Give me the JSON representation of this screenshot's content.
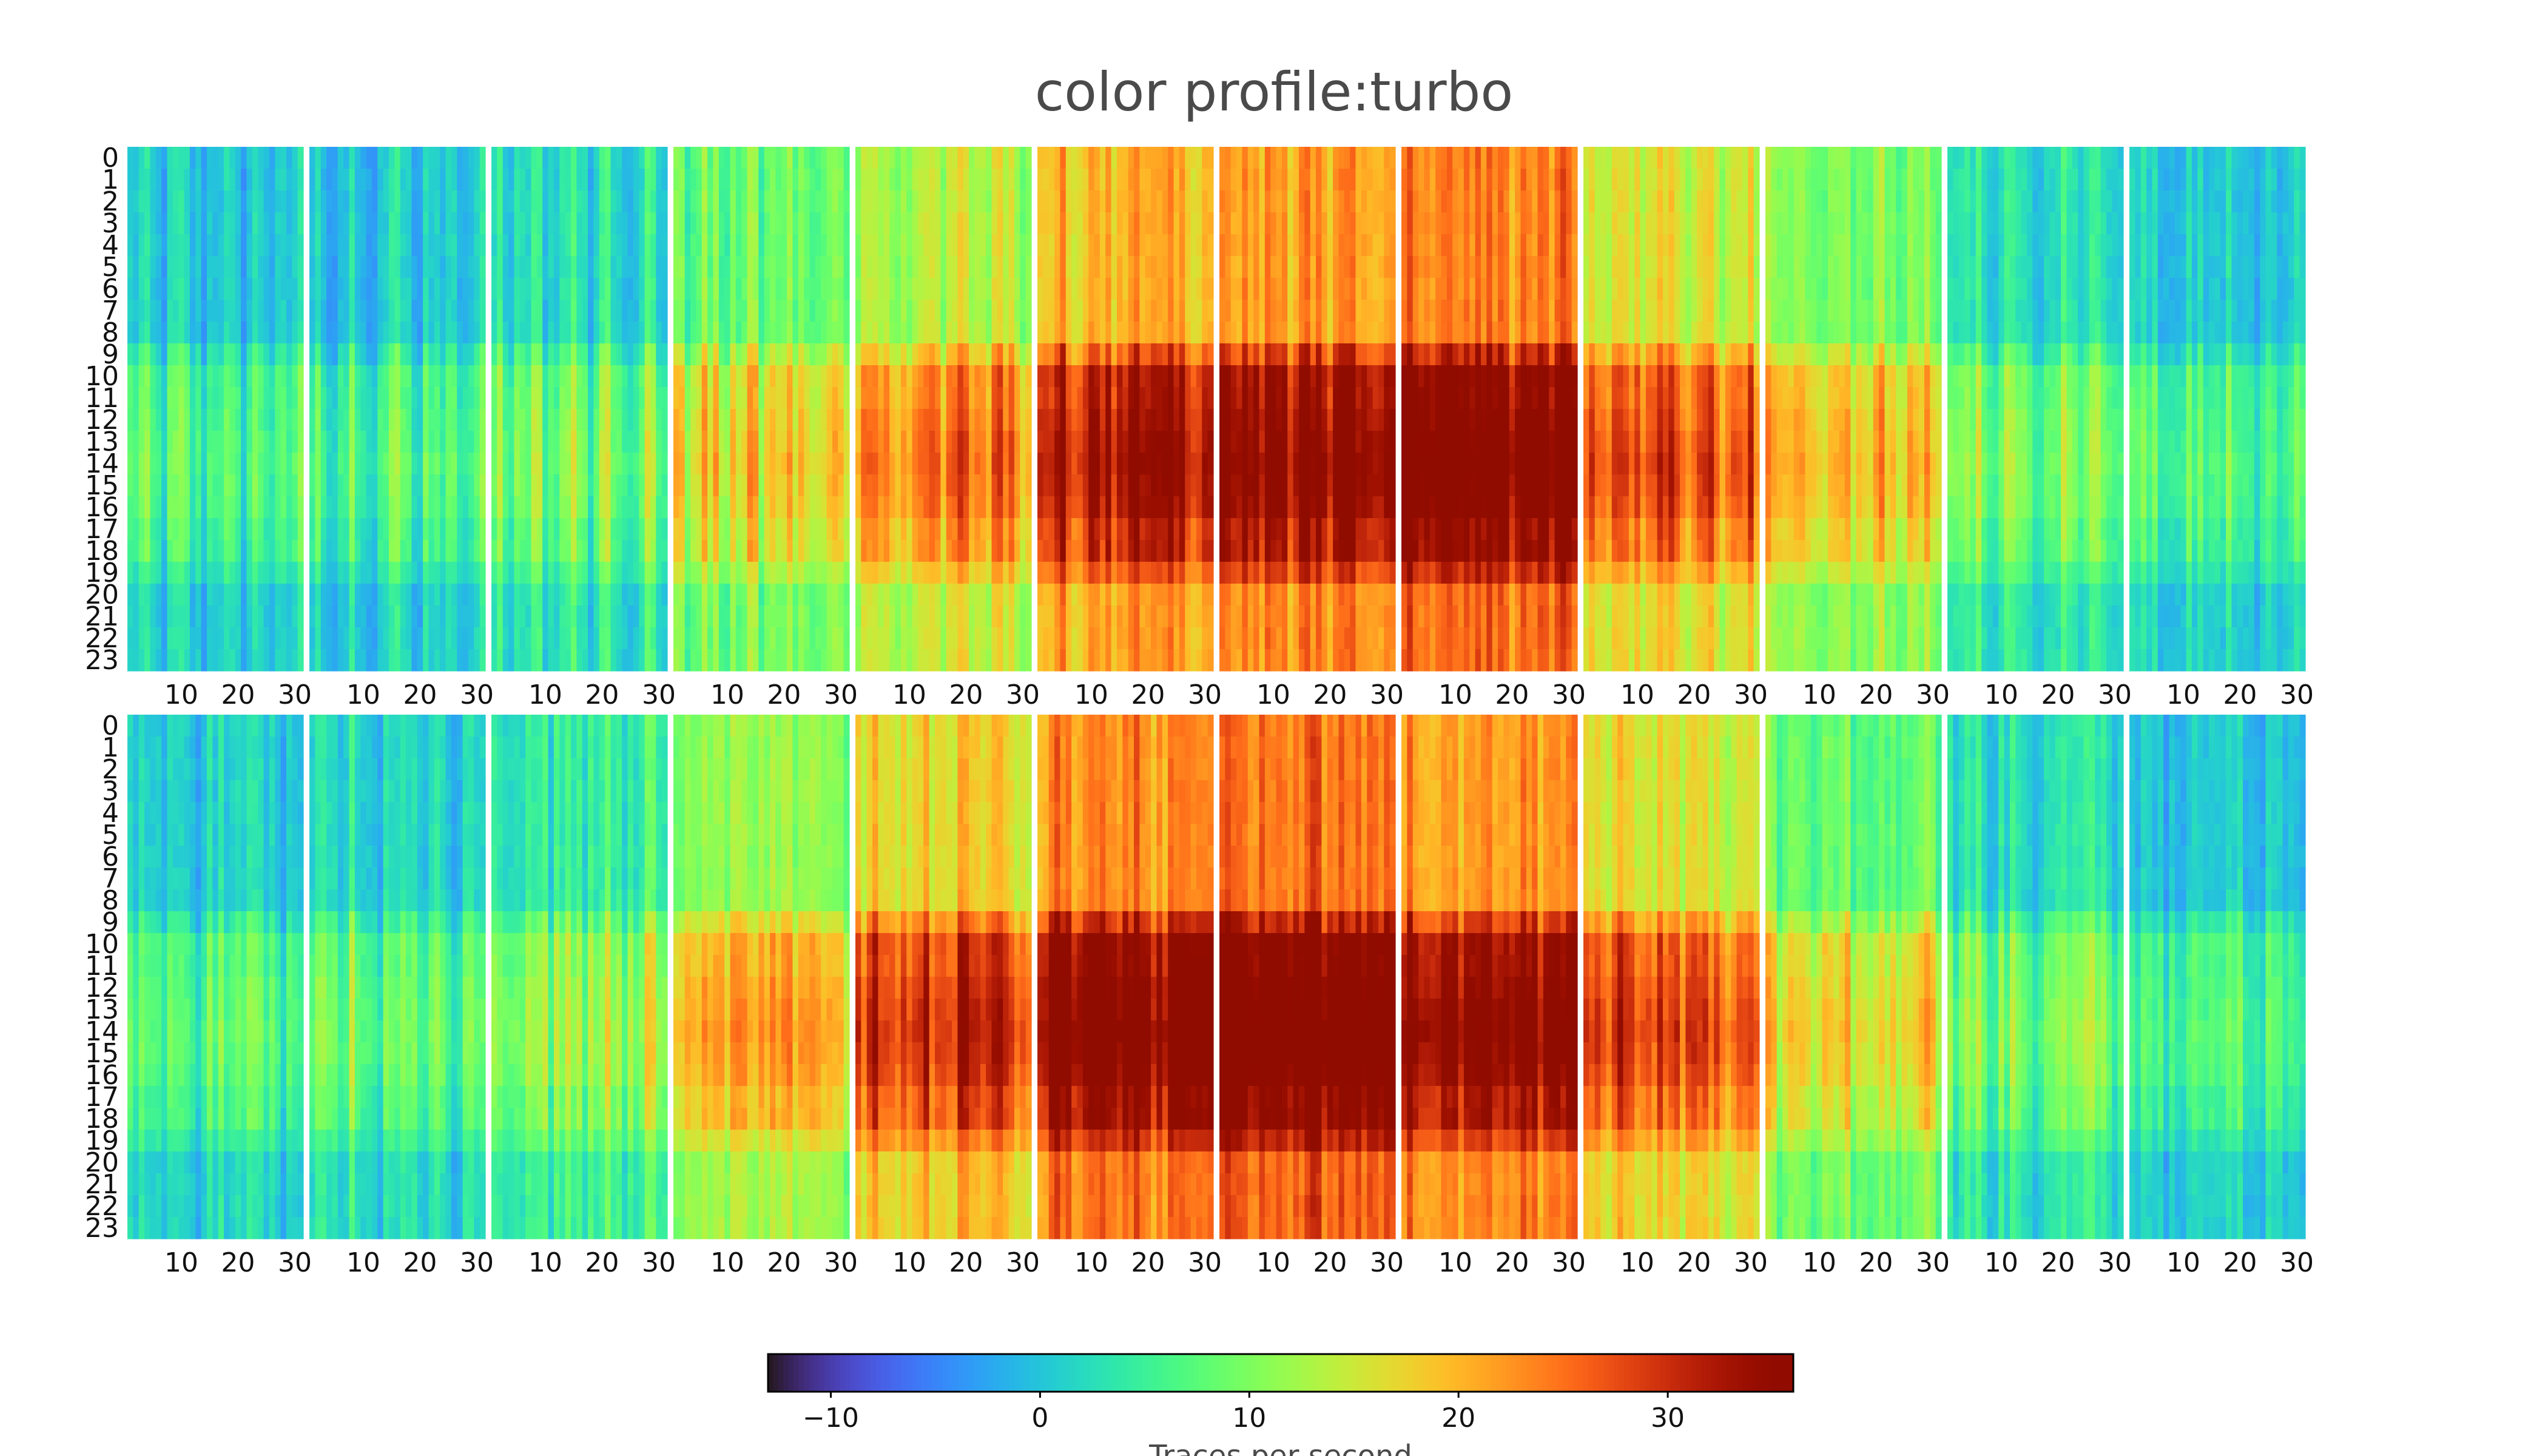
{
  "chart_data": {
    "type": "heatmap",
    "title": "color profile:turbo",
    "colormap": "turbo",
    "panel_count": 2,
    "months_per_panel": 12,
    "days_per_month": 31,
    "hours": 24,
    "y_tick_labels": [
      "0",
      "1",
      "2",
      "3",
      "4",
      "5",
      "6",
      "7",
      "8",
      "9",
      "10",
      "11",
      "12",
      "13",
      "14",
      "15",
      "16",
      "17",
      "18",
      "19",
      "20",
      "21",
      "22",
      "23"
    ],
    "x_tick_labels": [
      "10",
      "20",
      "30"
    ],
    "month_base_levels": [
      [
        1,
        2,
        4,
        10,
        15,
        22,
        24,
        26,
        17,
        12,
        4,
        2
      ],
      [
        2,
        3,
        6,
        13,
        19,
        25,
        27,
        24,
        18,
        10,
        4,
        1
      ]
    ],
    "colorbar": {
      "min": -13,
      "max": 36,
      "ticks": [
        -10,
        0,
        10,
        20,
        30
      ],
      "tick_labels": [
        "−10",
        "0",
        "10",
        "20",
        "30"
      ],
      "label": "Traces per second"
    }
  }
}
